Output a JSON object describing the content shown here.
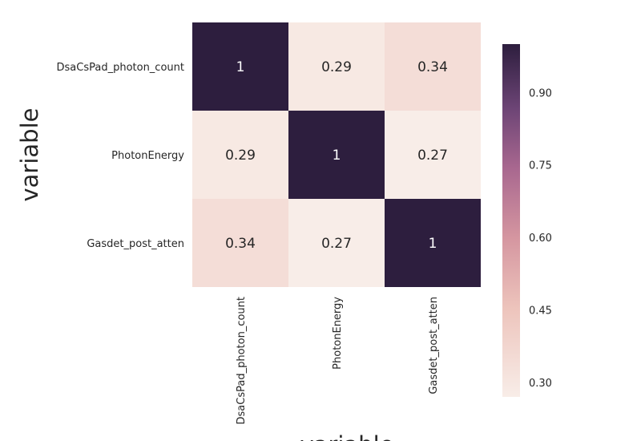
{
  "chart_data": {
    "type": "heatmap",
    "rows": [
      "DsaCsPad_photon_count",
      "PhotonEnergy",
      "Gasdet_post_atten"
    ],
    "columns": [
      "DsaCsPad_photon_count",
      "PhotonEnergy",
      "Gasdet_post_atten"
    ],
    "values": [
      [
        1,
        0.29,
        0.34
      ],
      [
        0.29,
        1,
        0.27
      ],
      [
        0.34,
        0.27,
        1
      ]
    ],
    "value_labels": [
      [
        "1",
        "0.29",
        "0.34"
      ],
      [
        "0.29",
        "1",
        "0.27"
      ],
      [
        "0.34",
        "0.27",
        "1"
      ]
    ],
    "ylabel": "variable",
    "xlabel": "variable",
    "colorbar": {
      "range": [
        0.27,
        1
      ],
      "ticks": [
        0.3,
        0.45,
        0.6,
        0.75,
        0.9
      ],
      "tick_labels": [
        "0.30",
        "0.45",
        "0.60",
        "0.75",
        "0.90"
      ],
      "low_color": "#f8ede8",
      "high_color": "#2d1e3e"
    },
    "grid": false,
    "legend": "colorbar-right"
  }
}
